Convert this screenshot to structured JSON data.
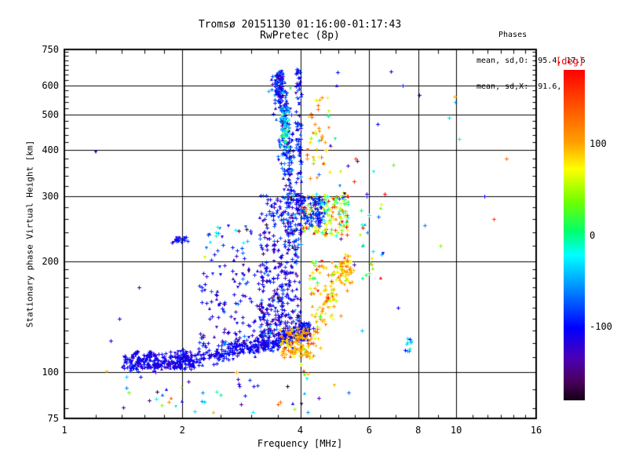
{
  "header": {
    "title": "Tromsø 20151130 01:16:00-01:17:43",
    "subtitle": "RwPretec (8p)",
    "stats": {
      "heading": "Phases",
      "line_o": "mean, sd,O: -95.4, 17.6",
      "line_x": "mean, sd,X:  91.6, 20.7"
    }
  },
  "chart_data": {
    "type": "scatter",
    "title": "Tromsø 20151130 01:16:00-01:17:43",
    "subtitle": "RwPretec (8p)",
    "xlabel": "Frequency [MHz]",
    "ylabel": "Stationary phase Virtual Height [km]",
    "x_scale": "log",
    "y_scale": "log",
    "x_range": [
      1,
      16
    ],
    "y_range": [
      75,
      750
    ],
    "x_major_ticks": [
      1,
      2,
      4,
      6,
      8,
      10,
      16
    ],
    "x_minor_ticks": [
      1.2,
      1.4,
      1.6,
      1.8,
      2.5,
      3,
      3.5,
      4.5,
      5,
      5.5,
      7,
      9,
      11,
      12,
      13,
      14,
      15
    ],
    "y_major_ticks": [
      750,
      600,
      500,
      400,
      300,
      200,
      100,
      75
    ],
    "y_minor_ticks": [
      80,
      90,
      110,
      120,
      130,
      140,
      150,
      160,
      170,
      180,
      190,
      220,
      240,
      260,
      280,
      320,
      340,
      360,
      380,
      420,
      440,
      460,
      480,
      520,
      540,
      560,
      580,
      620,
      640,
      660,
      680,
      700,
      720,
      740
    ],
    "x_gridlines": [
      2,
      4,
      6,
      8,
      10
    ],
    "y_gridlines": [
      600,
      500,
      400,
      300,
      200,
      100
    ],
    "grid": true,
    "legend_position": "none",
    "series_stats": {
      "o_mode": {
        "label": "O",
        "phase_mean_deg": -95.4,
        "phase_sd_deg": 17.6
      },
      "x_mode": {
        "label": "X",
        "phase_mean_deg": 91.6,
        "phase_sd_deg": 20.7
      }
    },
    "colorbar": {
      "label": "[deg]",
      "label_color": "#ff0000",
      "range": [
        -180,
        180
      ],
      "ticks": [
        100,
        0,
        -100
      ],
      "colormap_stops": [
        {
          "t": 0.0,
          "rgb": [
            255,
            0,
            0
          ]
        },
        {
          "t": 0.08,
          "rgb": [
            255,
            60,
            0
          ]
        },
        {
          "t": 0.22,
          "rgb": [
            255,
            160,
            0
          ]
        },
        {
          "t": 0.3,
          "rgb": [
            255,
            255,
            0
          ]
        },
        {
          "t": 0.4,
          "rgb": [
            110,
            255,
            0
          ]
        },
        {
          "t": 0.49,
          "rgb": [
            0,
            255,
            110
          ]
        },
        {
          "t": 0.56,
          "rgb": [
            0,
            255,
            255
          ]
        },
        {
          "t": 0.67,
          "rgb": [
            0,
            130,
            255
          ]
        },
        {
          "t": 0.78,
          "rgb": [
            0,
            0,
            255
          ]
        },
        {
          "t": 0.87,
          "rgb": [
            75,
            0,
            185
          ]
        },
        {
          "t": 0.94,
          "rgb": [
            75,
            0,
            95
          ]
        },
        {
          "t": 1.0,
          "rgb": [
            20,
            0,
            20
          ]
        }
      ]
    },
    "point_clusters": [
      {
        "name": "e-f-trace-O",
        "kind": "trace",
        "path": [
          [
            1.45,
            107
          ],
          [
            1.75,
            105
          ],
          [
            2.1,
            109
          ],
          [
            2.5,
            113
          ],
          [
            2.9,
            116
          ],
          [
            3.3,
            119
          ],
          [
            3.7,
            122
          ],
          [
            4.05,
            127
          ],
          [
            4.15,
            133
          ]
        ],
        "n": 520,
        "h_sd": 3,
        "logf_sd": 0.008,
        "phase_mean": -105,
        "phase_sd": 12
      },
      {
        "name": "e-trace-dense-start",
        "kind": "blob",
        "f": [
          1.42,
          2.15
        ],
        "h": [
          102,
          114
        ],
        "n": 170,
        "phase_mean": -112,
        "phase_sd": 10
      },
      {
        "name": "spread-cloud-low",
        "kind": "blob",
        "f": [
          2.2,
          3.25
        ],
        "h": [
          118,
          210
        ],
        "n": 140,
        "h_pow": 1.7,
        "phase_mean": -108,
        "phase_sd": 22
      },
      {
        "name": "spread-cloud-mid",
        "kind": "blob",
        "f": [
          3.15,
          4.0
        ],
        "h": [
          125,
          305
        ],
        "n": 380,
        "h_pow": 1.6,
        "phase_mean": -110,
        "phase_sd": 25
      },
      {
        "name": "vertical-stripe-O",
        "kind": "trace",
        "path": [
          [
            3.84,
            200
          ],
          [
            3.8,
            260
          ],
          [
            3.74,
            340
          ],
          [
            3.7,
            420
          ],
          [
            3.64,
            500
          ],
          [
            3.56,
            580
          ],
          [
            3.5,
            650
          ]
        ],
        "n": 290,
        "h_sd": 8,
        "logf_sd": 0.01,
        "phase_mean": -95,
        "phase_sd": 30
      },
      {
        "name": "stripe-cyan-green-seg",
        "kind": "blob",
        "f": [
          3.55,
          3.75
        ],
        "h": [
          400,
          520
        ],
        "n": 55,
        "phase_mean": -35,
        "phase_sd": 35
      },
      {
        "name": "stripe-at-4mhz",
        "kind": "blob",
        "f": [
          3.9,
          4.03
        ],
        "h": [
          250,
          665
        ],
        "n": 85,
        "phase_mean": -100,
        "phase_sd": 18
      },
      {
        "name": "stripe-top-clump",
        "kind": "blob",
        "f": [
          3.44,
          3.6
        ],
        "h": [
          555,
          655
        ],
        "n": 45,
        "phase_mean": -100,
        "phase_sd": 25
      },
      {
        "name": "x-mode-upper",
        "kind": "blob",
        "f": [
          4.15,
          4.75
        ],
        "h": [
          330,
          570
        ],
        "n": 40,
        "phase_mean": 95,
        "phase_sd": 40
      },
      {
        "name": "mixed-right-mid",
        "kind": "blob",
        "f": [
          4.05,
          5.3
        ],
        "h": [
          235,
          305
        ],
        "n": 150,
        "phase_mean": 45,
        "phase_sd": 75
      },
      {
        "name": "blue-clump-right-of-4",
        "kind": "blob",
        "f": [
          3.98,
          4.6
        ],
        "h": [
          248,
          302
        ],
        "n": 90,
        "phase_mean": -95,
        "phase_sd": 25
      },
      {
        "name": "x-mode-trace",
        "kind": "trace",
        "path": [
          [
            4.05,
            108
          ],
          [
            4.3,
            122
          ],
          [
            4.6,
            142
          ],
          [
            4.9,
            165
          ],
          [
            5.15,
            188
          ],
          [
            5.3,
            200
          ]
        ],
        "n": 130,
        "h_sd": 8,
        "logf_sd": 0.01,
        "phase_mean": 100,
        "phase_sd": 25
      },
      {
        "name": "x-blob-over-trace-end",
        "kind": "blob",
        "f": [
          3.55,
          4.2
        ],
        "h": [
          110,
          132
        ],
        "n": 110,
        "phase_mean": 100,
        "phase_sd": 20
      },
      {
        "name": "ox-mix-low-right",
        "kind": "blob",
        "f": [
          4.2,
          4.95
        ],
        "h": [
          140,
          205
        ],
        "n": 55,
        "phase_mean": 85,
        "phase_sd": 45
      },
      {
        "name": "sparse-right-band",
        "kind": "blob",
        "f": [
          4.95,
          6.6
        ],
        "h": [
          180,
          305
        ],
        "n": 30,
        "phase_mean": -10,
        "phase_sd": 105
      },
      {
        "name": "below-e-region",
        "kind": "blob",
        "f": [
          1.3,
          4.3
        ],
        "h": [
          77,
          99
        ],
        "n": 38,
        "phase_mean": -75,
        "phase_sd": 75
      },
      {
        "name": "left-dash-230km",
        "kind": "blob",
        "f": [
          1.88,
          2.06
        ],
        "h": [
          225,
          233
        ],
        "n": 22,
        "phase_mean": -105,
        "phase_sd": 10
      },
      {
        "name": "left-scatter-230km",
        "kind": "blob",
        "f": [
          2.25,
          3.0
        ],
        "h": [
          210,
          250
        ],
        "n": 26,
        "phase_mean": -85,
        "phase_sd": 50
      },
      {
        "name": "teal-spot-7p5mhz",
        "kind": "blob",
        "f": [
          7.4,
          7.7
        ],
        "h": [
          114,
          126
        ],
        "n": 12,
        "phase_mean": -40,
        "phase_sd": 20
      },
      {
        "name": "mid-upper-sparse",
        "kind": "blob",
        "f": [
          4.3,
          5.8
        ],
        "h": [
          300,
          430
        ],
        "n": 14,
        "phase_mean": 0,
        "phase_sd": 100
      },
      {
        "name": "outliers",
        "kind": "points",
        "pts": [
          [
            1.2,
            395,
            -110
          ],
          [
            1.28,
            100,
            95
          ],
          [
            1.38,
            140,
            -105
          ],
          [
            1.31,
            122,
            -100
          ],
          [
            1.55,
            170,
            -115
          ],
          [
            2.28,
            205,
            55
          ],
          [
            2.75,
            100,
            100
          ],
          [
            4.98,
            650,
            -100
          ],
          [
            4.95,
            600,
            -110
          ],
          [
            6.8,
            655,
            -100
          ],
          [
            7.3,
            600,
            -95
          ],
          [
            8.05,
            565,
            -100
          ],
          [
            9.9,
            560,
            95
          ],
          [
            9.95,
            540,
            -45
          ],
          [
            9.6,
            490,
            -35
          ],
          [
            10.2,
            430,
            -15
          ],
          [
            13.4,
            380,
            130
          ],
          [
            11.8,
            300,
            -100
          ],
          [
            12.5,
            260,
            150
          ],
          [
            6.3,
            470,
            -100
          ],
          [
            6.15,
            350,
            -25
          ],
          [
            6.9,
            365,
            30
          ],
          [
            5.9,
            300,
            -90
          ],
          [
            8.3,
            250,
            -60
          ],
          [
            9.1,
            220,
            40
          ],
          [
            6.5,
            210,
            -100
          ],
          [
            7.1,
            150,
            -105
          ],
          [
            5.75,
            130,
            -40
          ],
          [
            4.45,
            85,
            -130
          ],
          [
            4.9,
            92,
            95
          ],
          [
            5.3,
            88,
            -70
          ],
          [
            3.5,
            82,
            140
          ],
          [
            3.55,
            83,
            125
          ],
          [
            2.4,
            78,
            95
          ],
          [
            1.85,
            83,
            110
          ],
          [
            1.87,
            85,
            130
          ]
        ]
      }
    ]
  }
}
